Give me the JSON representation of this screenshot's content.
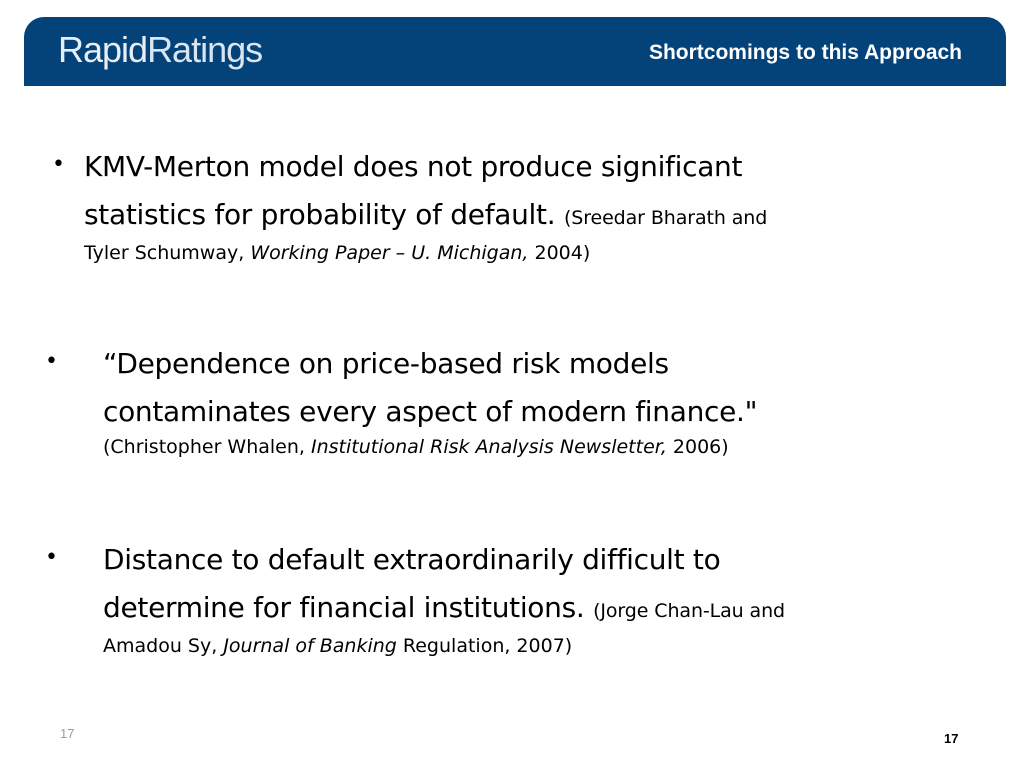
{
  "header": {
    "logo_part1": "Rapid",
    "logo_part2": "Ratings",
    "title": "Shortcomings to this Approach"
  },
  "bullets": [
    {
      "main_line1": "KMV-Merton model does not produce significant",
      "main_line2": "statistics for probability of default.",
      "cite_inline": "(Sreedar Bharath and",
      "cite_line2_pre": "Tyler Schumway, ",
      "cite_line2_italic": "Working Paper – U. Michigan,",
      "cite_line2_post": " 2004)"
    },
    {
      "main_line1": "“Dependence on price-based risk models",
      "main_line2": "contaminates every aspect of modern finance.\"",
      "cite_line2_pre": "(Christopher Whalen, ",
      "cite_line2_italic": "Institutional Risk Analysis Newsletter,",
      "cite_line2_post": " 2006)"
    },
    {
      "main_line1": "Distance to default extraordinarily difficult to",
      "main_line2": "determine for financial institutions.",
      "cite_inline": "(Jorge Chan-Lau and",
      "cite_line2_pre": "Amadou Sy, ",
      "cite_line2_italic": "Journal of Banking",
      "cite_line2_post": " Regulation, 2007)"
    }
  ],
  "footer": {
    "page_left": "17",
    "page_right": "17"
  }
}
